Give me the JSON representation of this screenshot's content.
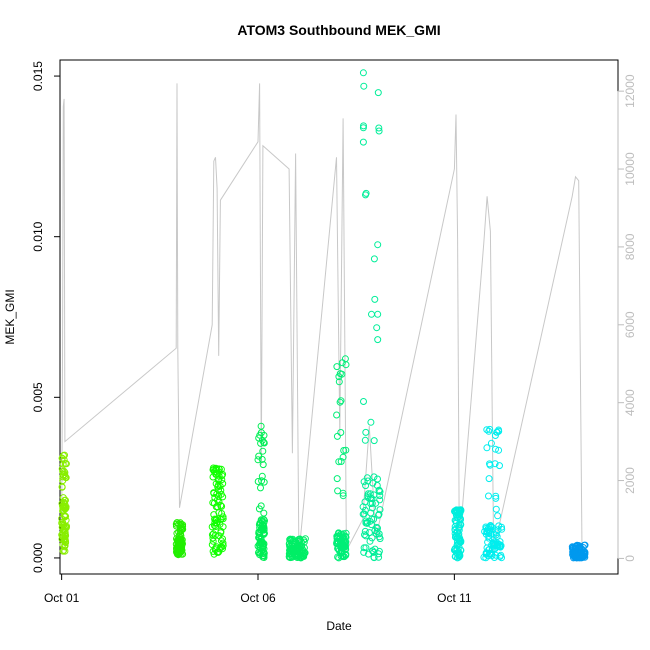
{
  "chart_data": {
    "type": "scatter",
    "title": "ATOM3 Southbound MEK_GMI",
    "xlabel": "Date",
    "ylabel": "MEK_GMI",
    "xlim": [
      "2016-09-30T23:00",
      "2016-10-15T04:00"
    ],
    "ylim": [
      -0.0005,
      0.0155
    ],
    "y2lim": [
      -400,
      12800
    ],
    "x_ticks": [
      {
        "date": "2016-10-01",
        "label": "Oct 01"
      },
      {
        "date": "2016-10-06",
        "label": "Oct 06"
      },
      {
        "date": "2016-10-11",
        "label": "Oct 11"
      }
    ],
    "y_ticks": [
      {
        "value": 0.0,
        "label": "0.000"
      },
      {
        "value": 0.005,
        "label": "0.005"
      },
      {
        "value": 0.01,
        "label": "0.010"
      },
      {
        "value": 0.015,
        "label": "0.015"
      }
    ],
    "y2_ticks": [
      {
        "value": 0,
        "label": "0"
      },
      {
        "value": 2000,
        "label": "2000"
      },
      {
        "value": 4000,
        "label": "4000"
      },
      {
        "value": 6000,
        "label": "6000"
      },
      {
        "value": 8000,
        "label": "8000"
      },
      {
        "value": 10000,
        "label": "10000"
      },
      {
        "value": 12000,
        "label": "12000"
      }
    ],
    "grid": false,
    "legend": "none",
    "colors": {
      "secondary_line": "#c8c8c8",
      "right_axis": "#bdbdbd"
    },
    "series": [
      {
        "color": "#88ee00",
        "x_start": "2016-10-01T00:00",
        "x_end": "2016-10-01T03:00",
        "y_low": 0.0002,
        "y_dense_high": 0.0018,
        "y_high": 0.0032
      },
      {
        "color": "#22ee00",
        "x_start": "2016-10-03T22:00",
        "x_end": "2016-10-04T02:00",
        "y_low": 0.0001,
        "y_dense_high": 0.0006,
        "y_high": 0.0011
      },
      {
        "color": "#11ff00",
        "x_start": "2016-10-04T20:00",
        "x_end": "2016-10-05T03:00",
        "y_low": 0.0001,
        "y_dense_high": 0.0024,
        "y_high": 0.0028
      },
      {
        "color": "#00ee55",
        "x_start": "2016-10-06T00:00",
        "x_end": "2016-10-06T04:00",
        "y_low": 0.0,
        "y_dense_high": 0.0012,
        "y_high": 0.0041
      },
      {
        "color": "#00ee66",
        "x_start": "2016-10-06T19:00",
        "x_end": "2016-10-07T05:00",
        "y_low": 0.0,
        "y_dense_high": 0.0004,
        "y_high": 0.0006
      },
      {
        "color": "#00ee77",
        "x_start": "2016-10-08T00:00",
        "x_end": "2016-10-08T06:00",
        "y_low": 0.0,
        "y_dense_high": 0.0008,
        "y_high": 0.0062
      },
      {
        "color": "#00ee99",
        "x_start": "2016-10-08T16:00",
        "x_end": "2016-10-09T03:00",
        "y_low": 0.0,
        "y_dense_high": 0.0026,
        "y_high": 0.0151
      },
      {
        "color": "#00eedd",
        "x_start": "2016-10-11T00:00",
        "x_end": "2016-10-11T04:00",
        "y_low": 0.0,
        "y_dense_high": 0.0014,
        "y_high": 0.0015
      },
      {
        "color": "#00eeee",
        "x_start": "2016-10-11T18:00",
        "x_end": "2016-10-12T05:00",
        "y_low": 0.0,
        "y_dense_high": 0.0011,
        "y_high": 0.004
      },
      {
        "color": "#0099ee",
        "x_start": "2016-10-14T00:00",
        "x_end": "2016-10-14T08:00",
        "y_low": 0.0,
        "y_dense_high": 0.0002,
        "y_high": 0.0004
      }
    ],
    "secondary_series": {
      "axis": "right",
      "points": [
        [
          "2016-10-01T00:00",
          100
        ],
        [
          "2016-10-01T00:30",
          5100
        ],
        [
          "2016-10-01T01:00",
          11600
        ],
        [
          "2016-10-01T01:30",
          11800
        ],
        [
          "2016-10-01T02:00",
          3000
        ],
        [
          "2016-10-03T22:00",
          5400
        ],
        [
          "2016-10-03T22:30",
          12200
        ],
        [
          "2016-10-03T23:00",
          5400
        ],
        [
          "2016-10-04T00:00",
          1300
        ],
        [
          "2016-10-04T20:00",
          6000
        ],
        [
          "2016-10-04T21:00",
          10200
        ],
        [
          "2016-10-04T22:00",
          10300
        ],
        [
          "2016-10-04T23:00",
          9500
        ],
        [
          "2016-10-05T00:00",
          5200
        ],
        [
          "2016-10-05T01:00",
          9200
        ],
        [
          "2016-10-06T00:00",
          10700
        ],
        [
          "2016-10-06T01:00",
          12200
        ],
        [
          "2016-10-06T02:00",
          2400
        ],
        [
          "2016-10-06T03:00",
          10600
        ],
        [
          "2016-10-06T19:00",
          10000
        ],
        [
          "2016-10-06T21:00",
          2700
        ],
        [
          "2016-10-06T23:00",
          10400
        ],
        [
          "2016-10-07T01:00",
          100
        ],
        [
          "2016-10-08T00:00",
          10300
        ],
        [
          "2016-10-08T02:00",
          3200
        ],
        [
          "2016-10-08T04:00",
          11300
        ],
        [
          "2016-10-08T06:00",
          200
        ],
        [
          "2016-10-08T16:00",
          1000
        ],
        [
          "2016-10-08T20:00",
          3400
        ],
        [
          "2016-10-09T00:00",
          500
        ],
        [
          "2016-10-11T00:00",
          10000
        ],
        [
          "2016-10-11T01:00",
          11400
        ],
        [
          "2016-10-11T02:00",
          8200
        ],
        [
          "2016-10-11T03:00",
          300
        ],
        [
          "2016-10-11T18:00",
          8100
        ],
        [
          "2016-10-11T20:00",
          9300
        ],
        [
          "2016-10-11T22:00",
          8400
        ],
        [
          "2016-10-12T00:00",
          200
        ],
        [
          "2016-10-14T00:00",
          9300
        ],
        [
          "2016-10-14T02:00",
          9800
        ],
        [
          "2016-10-14T04:00",
          9700
        ],
        [
          "2016-10-14T06:00",
          200
        ]
      ]
    }
  }
}
